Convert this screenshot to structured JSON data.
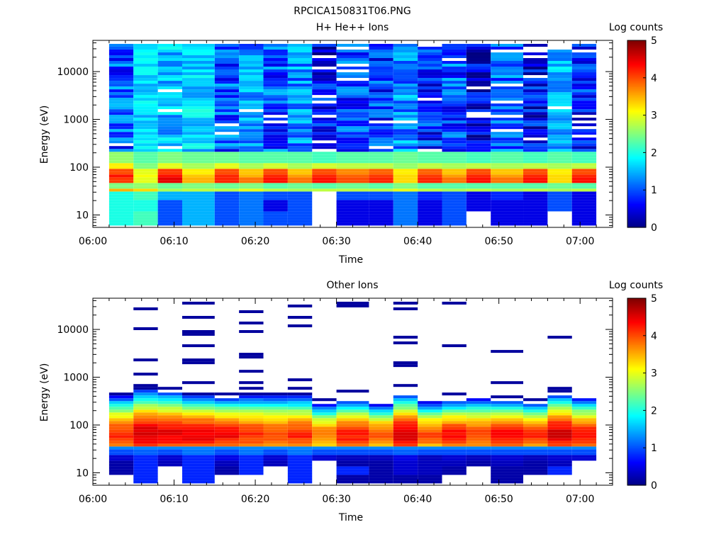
{
  "title": "RPCICA150831T06.PNG",
  "chart_data": [
    {
      "type": "heatmap",
      "title": "H+ He++ Ions",
      "xlabel": "Time",
      "ylabel": "Energy (eV)",
      "colorbar_label": "Log counts",
      "x_ticks": [
        "06:00",
        "06:10",
        "06:20",
        "06:30",
        "06:40",
        "06:50",
        "07:00"
      ],
      "y_ticks": [
        "10",
        "100",
        "1000",
        "10000"
      ],
      "colorbar_ticks": [
        "0",
        "1",
        "2",
        "3",
        "4",
        "5"
      ],
      "yscale": "log",
      "ylim": [
        5.5,
        45000
      ],
      "xlim_minutes": [
        0,
        64
      ],
      "clim": [
        0,
        5
      ],
      "columns": [
        {
          "t0": "06:02",
          "t1": "06:05",
          "low": [
            2,
            2,
            2,
            3.5,
            2.5,
            4.1,
            4.3,
            4.0,
            3.2,
            2.6
          ],
          "high_mean": 1.0,
          "high_var": 0.6,
          "gap_rate": 0.02,
          "top": 38000
        },
        {
          "t0": "06:05",
          "t1": "06:08",
          "low": [
            2.2,
            2.0,
            2.2,
            3.3,
            2.6,
            3.0,
            3.1,
            3.0,
            2.5,
            2.3
          ],
          "high_mean": 1.7,
          "high_var": 0.3,
          "gap_rate": 0.0,
          "top": 38000
        },
        {
          "t0": "06:08",
          "t1": "06:11",
          "low": [
            1,
            1,
            1.5,
            2.7,
            2.4,
            4.5,
            4.3,
            4.1,
            3.0,
            2.5
          ],
          "high_mean": 1.5,
          "high_var": 0.5,
          "gap_rate": 0.04,
          "top": 38000
        },
        {
          "t0": "06:11",
          "t1": "06:15",
          "low": [
            1.5,
            1.5,
            1.5,
            2.8,
            2.5,
            3.5,
            3.4,
            3.2,
            2.7,
            2.4
          ],
          "high_mean": 1.7,
          "high_var": 0.4,
          "gap_rate": 0.0,
          "top": 38000
        },
        {
          "t0": "06:15",
          "t1": "06:18",
          "low": [
            1,
            1,
            1,
            2.8,
            2.4,
            4.2,
            4.2,
            4.0,
            3.0,
            2.4
          ],
          "high_mean": 1.0,
          "high_var": 0.6,
          "gap_rate": 0.04,
          "top": 38000
        },
        {
          "t0": "06:18",
          "t1": "06:21",
          "low": [
            1.2,
            1.2,
            1.2,
            3.0,
            2.5,
            3.8,
            3.5,
            3.4,
            2.7,
            2.3
          ],
          "high_mean": 1.3,
          "high_var": 0.5,
          "gap_rate": 0.03,
          "top": 38000
        },
        {
          "t0": "06:21",
          "t1": "06:24",
          "low": [
            1,
            0.5,
            1,
            2.8,
            2.3,
            4.3,
            4.2,
            4.0,
            2.9,
            2.3
          ],
          "high_mean": 1.0,
          "high_var": 0.6,
          "gap_rate": 0.08,
          "top": 38000
        },
        {
          "t0": "06:24",
          "t1": "06:27",
          "low": [
            1,
            1,
            1,
            2.7,
            2.4,
            3.8,
            3.6,
            3.4,
            2.7,
            2.3
          ],
          "high_mean": 1.3,
          "high_var": 0.5,
          "gap_rate": 0.05,
          "top": 38000
        },
        {
          "t0": "06:27",
          "t1": "06:30",
          "low": [
            -1,
            -1,
            -1,
            2.8,
            2.3,
            4.3,
            4.2,
            4.0,
            2.9,
            2.2
          ],
          "high_mean": 0.6,
          "high_var": 0.6,
          "gap_rate": 0.22,
          "top": 38000
        },
        {
          "t0": "06:30",
          "t1": "06:34",
          "low": [
            0.5,
            0.5,
            1,
            2.8,
            2.4,
            4.0,
            3.9,
            3.7,
            2.8,
            2.3
          ],
          "high_mean": 1.0,
          "high_var": 0.6,
          "gap_rate": 0.1,
          "top": 38000
        },
        {
          "t0": "06:34",
          "t1": "06:37",
          "low": [
            0.5,
            0.5,
            1,
            2.8,
            2.3,
            4.2,
            4.1,
            3.9,
            2.8,
            2.3
          ],
          "high_mean": 0.9,
          "high_var": 0.6,
          "gap_rate": 0.1,
          "top": 38000
        },
        {
          "t0": "06:37",
          "t1": "06:40",
          "low": [
            1.2,
            1.2,
            1.2,
            3.0,
            2.5,
            3.3,
            3.3,
            3.2,
            2.6,
            2.4
          ],
          "high_mean": 1.3,
          "high_var": 0.5,
          "gap_rate": 0.03,
          "top": 38000
        },
        {
          "t0": "06:40",
          "t1": "06:43",
          "low": [
            0.5,
            0.5,
            0.8,
            2.8,
            2.3,
            4.2,
            4.1,
            3.9,
            2.8,
            2.3
          ],
          "high_mean": 0.8,
          "high_var": 0.6,
          "gap_rate": 0.1,
          "top": 38000
        },
        {
          "t0": "06:43",
          "t1": "06:46",
          "low": [
            1,
            1,
            1,
            2.7,
            2.3,
            3.8,
            3.6,
            3.4,
            2.7,
            2.3
          ],
          "high_mean": 1.0,
          "high_var": 0.6,
          "gap_rate": 0.08,
          "top": 38000
        },
        {
          "t0": "06:46",
          "t1": "06:49",
          "low": [
            -1,
            0.5,
            0.5,
            2.8,
            2.3,
            4.3,
            4.2,
            4.0,
            2.8,
            2.2
          ],
          "high_mean": 0.5,
          "high_var": 0.5,
          "gap_rate": 0.2,
          "top": 38000
        },
        {
          "t0": "06:49",
          "t1": "06:53",
          "low": [
            0.5,
            0.5,
            0.8,
            2.7,
            2.3,
            3.8,
            3.6,
            3.4,
            2.7,
            2.3
          ],
          "high_mean": 1.0,
          "high_var": 0.6,
          "gap_rate": 0.1,
          "top": 38000
        },
        {
          "t0": "06:53",
          "t1": "06:56",
          "low": [
            0.5,
            0.5,
            0.5,
            2.8,
            2.3,
            4.3,
            4.2,
            4.0,
            2.8,
            2.2
          ],
          "high_mean": 0.6,
          "high_var": 0.6,
          "gap_rate": 0.18,
          "top": 38000
        },
        {
          "t0": "06:56",
          "t1": "06:59",
          "low": [
            -1,
            1,
            1,
            2.7,
            2.4,
            3.3,
            3.3,
            3.2,
            2.7,
            2.3
          ],
          "high_mean": 1.5,
          "high_var": 0.4,
          "gap_rate": 0.05,
          "top": 38000
        },
        {
          "t0": "06:59",
          "t1": "07:02",
          "low": [
            0.5,
            0.5,
            0.5,
            2.8,
            2.3,
            4.3,
            4.2,
            4.0,
            2.8,
            2.2
          ],
          "high_mean": 0.8,
          "high_var": 0.6,
          "gap_rate": 0.1,
          "top": 38000
        }
      ]
    },
    {
      "type": "heatmap",
      "title": "Other Ions",
      "xlabel": "Time",
      "ylabel": "Energy (eV)",
      "colorbar_label": "Log counts",
      "x_ticks": [
        "06:00",
        "06:10",
        "06:20",
        "06:30",
        "06:40",
        "06:50",
        "07:00"
      ],
      "y_ticks": [
        "10",
        "100",
        "1000",
        "10000"
      ],
      "colorbar_ticks": [
        "0",
        "1",
        "2",
        "3",
        "4",
        "5"
      ],
      "yscale": "log",
      "ylim": [
        5.5,
        45000
      ],
      "xlim_minutes": [
        0,
        64
      ],
      "clim": [
        0,
        5
      ],
      "columns": [
        {
          "t0": "06:02",
          "t1": "06:05",
          "band_top": 400,
          "peak": 4.2,
          "low": [
            -1,
            0.2,
            0.2,
            0.4,
            1.0
          ],
          "lines": [
            450
          ]
        },
        {
          "t0": "06:05",
          "t1": "06:08",
          "band_top": 550,
          "peak": 4.6,
          "low": [
            0.8,
            0.8,
            0.8,
            0.8,
            1.1
          ],
          "lines": [
            27000,
            11000,
            2400,
            1200,
            700,
            570
          ]
        },
        {
          "t0": "06:08",
          "t1": "06:11",
          "band_top": 500,
          "peak": 4.5,
          "low": [
            -1,
            -1,
            0.3,
            0.4,
            1.0
          ],
          "lines": [
            560
          ]
        },
        {
          "t0": "06:11",
          "t1": "06:15",
          "band_top": 420,
          "peak": 4.5,
          "low": [
            0.8,
            0.8,
            0.8,
            0.8,
            1.2
          ],
          "lines": [
            34000,
            17000,
            9000,
            8000,
            4300,
            2200,
            2000,
            720,
            450
          ]
        },
        {
          "t0": "06:15",
          "t1": "06:18",
          "band_top": 380,
          "peak": 4.4,
          "low": [
            -1,
            0.2,
            0.3,
            0.5,
            1.0
          ],
          "lines": [
            440
          ]
        },
        {
          "t0": "06:18",
          "t1": "06:21",
          "band_top": 400,
          "peak": 4.2,
          "low": [
            -1,
            0.8,
            0.8,
            0.8,
            1.2
          ],
          "lines": [
            24000,
            14000,
            8700,
            3000,
            2800,
            1400,
            750,
            600,
            450
          ]
        },
        {
          "t0": "06:21",
          "t1": "06:24",
          "band_top": 420,
          "peak": 4.0,
          "low": [
            -1,
            -1,
            0.3,
            0.4,
            1.0
          ],
          "lines": [
            440
          ]
        },
        {
          "t0": "06:24",
          "t1": "06:27",
          "band_top": 400,
          "peak": 4.2,
          "low": [
            0.8,
            0.8,
            0.8,
            0.8,
            1.2
          ],
          "lines": [
            29000,
            17000,
            12000,
            850,
            600,
            450
          ]
        },
        {
          "t0": "06:27",
          "t1": "06:30",
          "band_top": 270,
          "peak": 3.8,
          "low": [
            -1,
            -1,
            -1,
            0.4,
            1.0
          ],
          "lines": [
            330
          ]
        },
        {
          "t0": "06:30",
          "t1": "06:34",
          "band_top": 330,
          "peak": 4.3,
          "low": [
            0.2,
            0.8,
            0.2,
            0.3,
            1.0
          ],
          "lines": [
            36000,
            31000,
            500
          ]
        },
        {
          "t0": "06:34",
          "t1": "06:37",
          "band_top": 260,
          "peak": 4.0,
          "low": [
            0.2,
            0.2,
            0.2,
            0.3,
            1.0
          ],
          "lines": []
        },
        {
          "t0": "06:37",
          "t1": "06:40",
          "band_top": 440,
          "peak": 4.6,
          "low": [
            0.2,
            0.4,
            0.4,
            0.5,
            1.1
          ],
          "lines": [
            37000,
            26000,
            7000,
            5200,
            2100,
            1800,
            700
          ]
        },
        {
          "t0": "06:40",
          "t1": "06:43",
          "band_top": 300,
          "peak": 4.0,
          "low": [
            0.2,
            0.3,
            0.3,
            0.3,
            1.0
          ],
          "lines": []
        },
        {
          "t0": "06:43",
          "t1": "06:46",
          "band_top": 330,
          "peak": 4.3,
          "low": [
            -1,
            0.2,
            0.3,
            0.4,
            1.0
          ],
          "lines": [
            34000,
            4300,
            450
          ]
        },
        {
          "t0": "06:46",
          "t1": "06:49",
          "band_top": 350,
          "peak": 4.1,
          "low": [
            -1,
            -1,
            0.2,
            0.3,
            1.0
          ],
          "lines": []
        },
        {
          "t0": "06:49",
          "t1": "06:53",
          "band_top": 330,
          "peak": 4.4,
          "low": [
            0.2,
            0.2,
            0.3,
            0.4,
            1.0
          ],
          "lines": [
            3400,
            720,
            400
          ]
        },
        {
          "t0": "06:53",
          "t1": "06:56",
          "band_top": 290,
          "peak": 4.2,
          "low": [
            -1,
            0.2,
            0.2,
            0.3,
            1.0
          ],
          "lines": [
            330
          ]
        },
        {
          "t0": "06:56",
          "t1": "06:59",
          "band_top": 440,
          "peak": 4.6,
          "low": [
            -1,
            0.8,
            0.3,
            0.4,
            1.0
          ],
          "lines": [
            7000,
            600,
            520
          ]
        },
        {
          "t0": "06:59",
          "t1": "07:02",
          "band_top": 350,
          "peak": 4.3,
          "low": [
            -1,
            -1,
            -1,
            0.4,
            1.0
          ],
          "lines": []
        }
      ]
    }
  ]
}
